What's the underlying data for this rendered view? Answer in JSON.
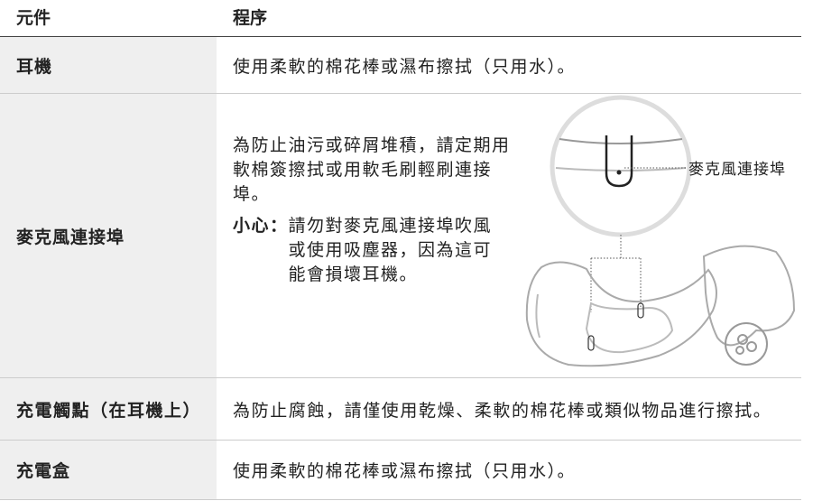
{
  "header": {
    "component": "元件",
    "procedure": "程序"
  },
  "rows": [
    {
      "component": "耳機",
      "procedure": "使用柔軟的棉花棒或濕布擦拭（只用水）。"
    },
    {
      "component": "麥克風連接埠",
      "procedure": "為防止油污或碎屑堆積，請定期用軟棉簽擦拭或用軟毛刷輕刷連接埠。",
      "caution_label": "小心：",
      "caution": "請勿對麥克風連接埠吹風或使用吸塵器，因為這可能會損壞耳機。",
      "illustration_label": "麥克風連接埠"
    },
    {
      "component": "充電觸點（在耳機上）",
      "procedure": "為防止腐蝕，請僅使用乾燥、柔軟的棉花棒或類似物品進行擦拭。"
    },
    {
      "component": "充電盒",
      "procedure": "使用柔軟的棉花棒或濕布擦拭（只用水）。"
    }
  ]
}
